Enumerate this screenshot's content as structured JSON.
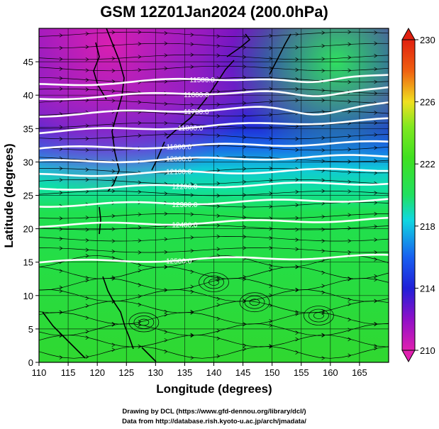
{
  "title": "GSM 12Z01Jan2024 (200.0hPa)",
  "x_axis": {
    "label": "Longitude (degrees)",
    "min": 110,
    "max": 170,
    "ticks": [
      "110",
      "115",
      "120",
      "125",
      "130",
      "135",
      "140",
      "145",
      "150",
      "155",
      "160",
      "165"
    ]
  },
  "y_axis": {
    "label": "Latitude  (degrees)",
    "min": 0,
    "max": 50,
    "ticks": [
      "0",
      "5",
      "10",
      "15",
      "20",
      "25",
      "30",
      "35",
      "40",
      "45"
    ]
  },
  "colorbar": {
    "min": 210,
    "max": 230,
    "ticks": [
      "210",
      "214",
      "218",
      "222",
      "226",
      "230"
    ],
    "colors": [
      "#e020b0",
      "#9010c8",
      "#2020d8",
      "#1860f0",
      "#10d8e0",
      "#20e060",
      "#40e020",
      "#80e820",
      "#f0e020",
      "#f06010",
      "#e02010"
    ]
  },
  "contour_labels": [
    "11500.0",
    "11600.0",
    "11700.0",
    "11800.0",
    "11900.0",
    "12000.0",
    "12100.0",
    "12200.0",
    "12300.0",
    "12400.0",
    "12500.0"
  ],
  "footer": {
    "line1": "Drawing by DCL (https://www.gfd-dennou.org/library/dcl/)",
    "line2": "Data from http://database.rish.kyoto-u.ac.jp/arch/jmadata/"
  }
}
